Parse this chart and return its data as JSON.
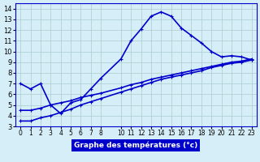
{
  "title": "Graphe des températures (°c)",
  "xlabel": "Graphe des températures (°c)",
  "bg_color": "#d6eef8",
  "line_color": "#0000cc",
  "grid_color": "#aacccc",
  "x_ticks": [
    0,
    1,
    2,
    3,
    4,
    5,
    6,
    7,
    8,
    10,
    11,
    12,
    13,
    14,
    15,
    16,
    17,
    18,
    19,
    20,
    21,
    22,
    23
  ],
  "ylim": [
    3,
    14.5
  ],
  "xlim": [
    -0.5,
    23.5
  ],
  "yticks": [
    3,
    4,
    5,
    6,
    7,
    8,
    9,
    10,
    11,
    12,
    13,
    14
  ],
  "curve1_x": [
    0,
    1,
    2,
    3,
    4,
    5,
    6,
    7,
    8,
    10,
    11,
    12,
    13,
    14,
    15,
    16,
    17,
    18,
    19,
    20,
    21,
    22,
    23
  ],
  "curve1_y": [
    7.0,
    6.5,
    7.0,
    5.0,
    4.2,
    5.2,
    5.5,
    6.5,
    7.5,
    9.3,
    11.0,
    12.1,
    13.3,
    13.7,
    13.3,
    12.2,
    11.5,
    10.8,
    10.0,
    9.5,
    9.6,
    9.5,
    9.2
  ],
  "curve2_x": [
    0,
    1,
    2,
    3,
    4,
    5,
    6,
    7,
    8,
    10,
    11,
    12,
    13,
    14,
    15,
    16,
    17,
    18,
    19,
    20,
    21,
    22,
    23
  ],
  "curve2_y": [
    3.5,
    3.5,
    3.8,
    4.0,
    4.3,
    4.6,
    5.0,
    5.3,
    5.6,
    6.2,
    6.5,
    6.8,
    7.1,
    7.4,
    7.6,
    7.8,
    8.0,
    8.2,
    8.5,
    8.7,
    8.9,
    9.0,
    9.2
  ],
  "curve3_x": [
    0,
    1,
    2,
    3,
    4,
    5,
    6,
    7,
    8,
    10,
    11,
    12,
    13,
    14,
    15,
    16,
    17,
    18,
    19,
    20,
    21,
    22,
    23
  ],
  "curve3_y": [
    4.5,
    4.5,
    4.7,
    5.0,
    5.2,
    5.4,
    5.7,
    5.9,
    6.1,
    6.6,
    6.9,
    7.1,
    7.4,
    7.6,
    7.8,
    8.0,
    8.2,
    8.4,
    8.6,
    8.8,
    9.0,
    9.1,
    9.3
  ]
}
